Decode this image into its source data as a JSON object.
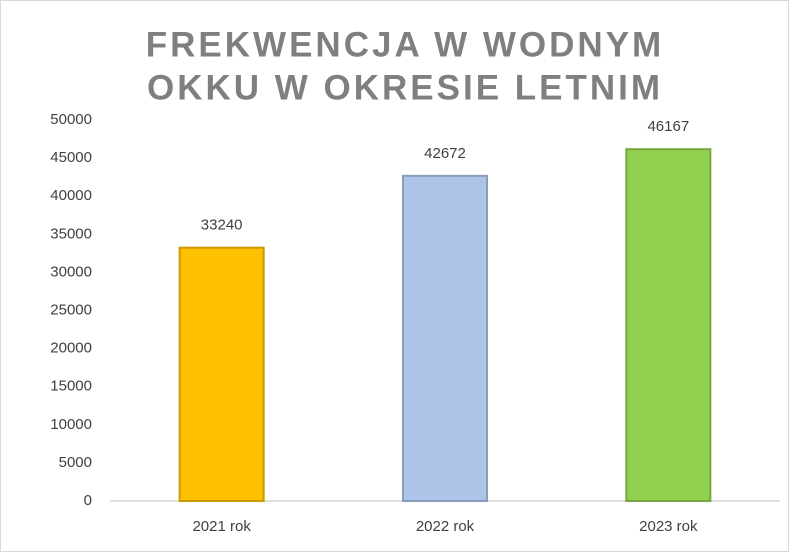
{
  "chart_data": {
    "type": "bar",
    "title": [
      "FREKWENCJA W WODNYM",
      "OKKU W OKRESIE LETNIM"
    ],
    "categories": [
      "2021 rok",
      "2022 rok",
      "2023 rok"
    ],
    "values": [
      33240,
      42672,
      46167
    ],
    "colors": [
      "#ffc000",
      "#adc3e8",
      "#92d050"
    ],
    "ylim": [
      0,
      50000
    ],
    "yticks": [
      0,
      5000,
      10000,
      15000,
      20000,
      25000,
      30000,
      35000,
      40000,
      45000,
      50000
    ],
    "grid": false,
    "data_labels": true
  }
}
